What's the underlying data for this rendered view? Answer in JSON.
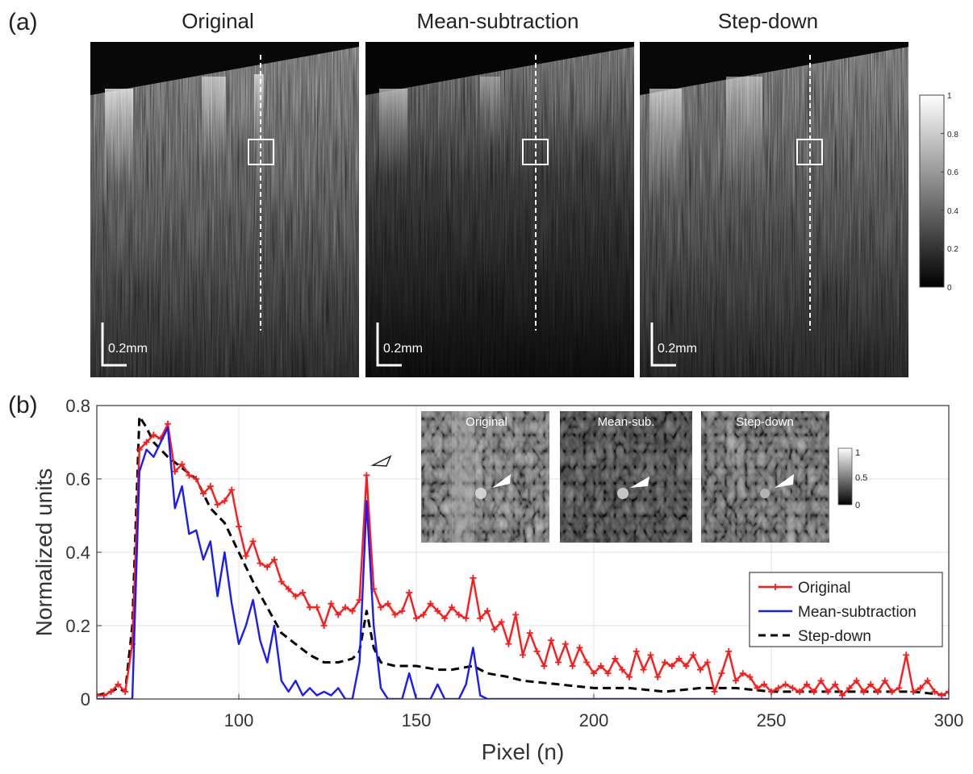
{
  "panel_a": {
    "label": "(a)",
    "titles": [
      "Original",
      "Mean-subtraction",
      "Step-down"
    ],
    "scale_bar": "0.2mm",
    "colorbar_ticks": [
      "1",
      "0.8",
      "0.6",
      "0.4",
      "0.2",
      "0"
    ]
  },
  "panel_b": {
    "label": "(b)",
    "inset_titles": [
      "Original",
      "Mean-sub.",
      "Step-down"
    ],
    "inset_colorbar_ticks": [
      "1",
      "0.5",
      "0"
    ]
  },
  "colors": {
    "original": "#ff1a1a",
    "mean_subtraction": "#1a1aff",
    "step_down": "#000000"
  },
  "chart_data": {
    "type": "line",
    "title": "",
    "xlabel": "Pixel (n)",
    "ylabel": "Normalized units",
    "xlim": [
      60,
      300
    ],
    "ylim": [
      0,
      0.8
    ],
    "xticks": [
      100,
      150,
      200,
      250,
      300
    ],
    "yticks": [
      0,
      0.2,
      0.4,
      0.6,
      0.8
    ],
    "grid": true,
    "legend": "right",
    "series": [
      {
        "name": "Original",
        "style": "solid-plus-markers",
        "x": [
          60,
          62,
          64,
          66,
          68,
          70,
          72,
          74,
          76,
          78,
          80,
          82,
          84,
          86,
          88,
          90,
          92,
          94,
          96,
          98,
          100,
          102,
          104,
          106,
          108,
          110,
          112,
          114,
          116,
          118,
          120,
          122,
          124,
          126,
          128,
          130,
          132,
          134,
          136,
          138,
          140,
          142,
          144,
          146,
          148,
          150,
          152,
          154,
          156,
          158,
          160,
          162,
          164,
          166,
          168,
          170,
          172,
          174,
          176,
          178,
          180,
          182,
          184,
          186,
          188,
          190,
          192,
          194,
          196,
          198,
          200,
          202,
          204,
          206,
          208,
          210,
          212,
          214,
          216,
          218,
          220,
          222,
          224,
          226,
          228,
          230,
          232,
          234,
          236,
          238,
          240,
          242,
          244,
          246,
          248,
          250,
          252,
          254,
          256,
          258,
          260,
          262,
          264,
          266,
          268,
          270,
          272,
          274,
          276,
          278,
          280,
          282,
          284,
          286,
          288,
          290,
          292,
          294,
          296,
          298,
          300
        ],
        "y": [
          0.01,
          0.01,
          0.02,
          0.04,
          0.02,
          0.15,
          0.68,
          0.7,
          0.72,
          0.71,
          0.75,
          0.62,
          0.64,
          0.61,
          0.6,
          0.56,
          0.58,
          0.53,
          0.54,
          0.57,
          0.47,
          0.39,
          0.43,
          0.37,
          0.36,
          0.38,
          0.32,
          0.3,
          0.28,
          0.29,
          0.25,
          0.25,
          0.2,
          0.26,
          0.23,
          0.25,
          0.24,
          0.27,
          0.61,
          0.3,
          0.25,
          0.26,
          0.23,
          0.24,
          0.29,
          0.22,
          0.23,
          0.26,
          0.24,
          0.22,
          0.25,
          0.23,
          0.22,
          0.33,
          0.22,
          0.24,
          0.19,
          0.21,
          0.15,
          0.23,
          0.12,
          0.18,
          0.13,
          0.09,
          0.16,
          0.1,
          0.15,
          0.09,
          0.14,
          0.1,
          0.07,
          0.09,
          0.07,
          0.11,
          0.08,
          0.06,
          0.13,
          0.08,
          0.12,
          0.06,
          0.1,
          0.09,
          0.11,
          0.09,
          0.12,
          0.08,
          0.1,
          0.02,
          0.07,
          0.13,
          0.05,
          0.07,
          0.06,
          0.03,
          0.04,
          0.02,
          0.03,
          0.04,
          0.03,
          0.02,
          0.04,
          0.02,
          0.05,
          0.02,
          0.04,
          0.01,
          0.03,
          0.05,
          0.02,
          0.04,
          0.02,
          0.05,
          0.02,
          0.03,
          0.12,
          0.02,
          0.03,
          0.05,
          0.02,
          0.01,
          0.02
        ]
      },
      {
        "name": "Mean-subtraction",
        "style": "solid",
        "x": [
          60,
          62,
          64,
          66,
          68,
          70,
          72,
          74,
          76,
          78,
          80,
          82,
          84,
          86,
          88,
          90,
          92,
          94,
          96,
          98,
          100,
          102,
          104,
          106,
          108,
          110,
          112,
          114,
          116,
          118,
          120,
          122,
          124,
          126,
          128,
          130,
          132,
          134,
          136,
          138,
          140,
          142,
          144,
          146,
          148,
          150,
          152,
          154,
          156,
          158,
          160,
          162,
          164,
          166,
          168,
          170,
          180,
          200,
          250,
          300
        ],
        "y": [
          0,
          0,
          0,
          0,
          0,
          0,
          0.62,
          0.68,
          0.66,
          0.7,
          0.74,
          0.52,
          0.58,
          0.45,
          0.46,
          0.38,
          0.43,
          0.28,
          0.4,
          0.26,
          0.15,
          0.2,
          0.27,
          0.16,
          0.1,
          0.2,
          0.05,
          0.02,
          0.05,
          0.01,
          0.03,
          0.01,
          0.02,
          0.01,
          0.03,
          0,
          0,
          0.1,
          0.54,
          0.2,
          0.03,
          0,
          0,
          0,
          0.07,
          0,
          0,
          0,
          0.04,
          0,
          0,
          0,
          0.04,
          0.14,
          0.01,
          0,
          0,
          0,
          0,
          0
        ]
      },
      {
        "name": "Step-down",
        "style": "dashed",
        "x": [
          60,
          64,
          66,
          68,
          70,
          72,
          74,
          76,
          78,
          80,
          84,
          88,
          92,
          96,
          100,
          104,
          108,
          112,
          116,
          120,
          124,
          128,
          132,
          134,
          136,
          138,
          140,
          144,
          150,
          156,
          160,
          166,
          170,
          176,
          180,
          190,
          200,
          210,
          220,
          230,
          240,
          250,
          260,
          270,
          280,
          290,
          300
        ],
        "y": [
          0.01,
          0.02,
          0.03,
          0.02,
          0.2,
          0.77,
          0.74,
          0.7,
          0.68,
          0.66,
          0.63,
          0.6,
          0.52,
          0.48,
          0.4,
          0.32,
          0.25,
          0.18,
          0.15,
          0.12,
          0.1,
          0.1,
          0.11,
          0.13,
          0.24,
          0.14,
          0.1,
          0.09,
          0.09,
          0.08,
          0.08,
          0.09,
          0.07,
          0.06,
          0.05,
          0.04,
          0.03,
          0.03,
          0.02,
          0.03,
          0.03,
          0.02,
          0.02,
          0.02,
          0.02,
          0.02,
          0.01
        ]
      }
    ]
  }
}
